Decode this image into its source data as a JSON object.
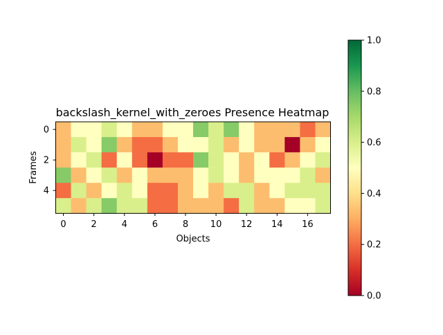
{
  "chart_data": {
    "type": "heatmap",
    "title": "backslash_kernel_with_zeroes Presence Heatmap",
    "xlabel": "Objects",
    "ylabel": "Frames",
    "x_ticks": [
      0,
      2,
      4,
      6,
      8,
      10,
      12,
      14,
      16
    ],
    "y_ticks": [
      0,
      2,
      4
    ],
    "rows": 6,
    "cols": 18,
    "values": [
      [
        0.33,
        0.5,
        0.5,
        0.6,
        0.5,
        0.33,
        0.33,
        0.5,
        0.5,
        0.75,
        0.6,
        0.75,
        0.5,
        0.33,
        0.33,
        0.33,
        0.2,
        0.33
      ],
      [
        0.33,
        0.6,
        0.5,
        0.75,
        0.33,
        0.2,
        0.2,
        0.33,
        0.5,
        0.5,
        0.6,
        0.33,
        0.5,
        0.33,
        0.33,
        0.0,
        0.33,
        0.5
      ],
      [
        0.33,
        0.5,
        0.6,
        0.2,
        0.5,
        0.2,
        0.0,
        0.2,
        0.2,
        0.75,
        0.6,
        0.5,
        0.33,
        0.5,
        0.2,
        0.33,
        0.5,
        0.6
      ],
      [
        0.75,
        0.33,
        0.5,
        0.6,
        0.33,
        0.5,
        0.33,
        0.33,
        0.33,
        0.5,
        0.6,
        0.5,
        0.33,
        0.5,
        0.5,
        0.5,
        0.6,
        0.33
      ],
      [
        0.2,
        0.6,
        0.33,
        0.5,
        0.6,
        0.5,
        0.2,
        0.2,
        0.33,
        0.5,
        0.33,
        0.6,
        0.6,
        0.33,
        0.5,
        0.6,
        0.6,
        0.6
      ],
      [
        0.6,
        0.33,
        0.6,
        0.75,
        0.6,
        0.6,
        0.2,
        0.2,
        0.33,
        0.33,
        0.33,
        0.2,
        0.6,
        0.33,
        0.33,
        0.5,
        0.5,
        0.6
      ]
    ],
    "colormap": "RdYlGn",
    "colorbar": {
      "min": 0.0,
      "max": 1.0,
      "ticks": [
        "0.0",
        "0.2",
        "0.4",
        "0.6",
        "0.8",
        "1.0"
      ]
    },
    "grid": false
  }
}
